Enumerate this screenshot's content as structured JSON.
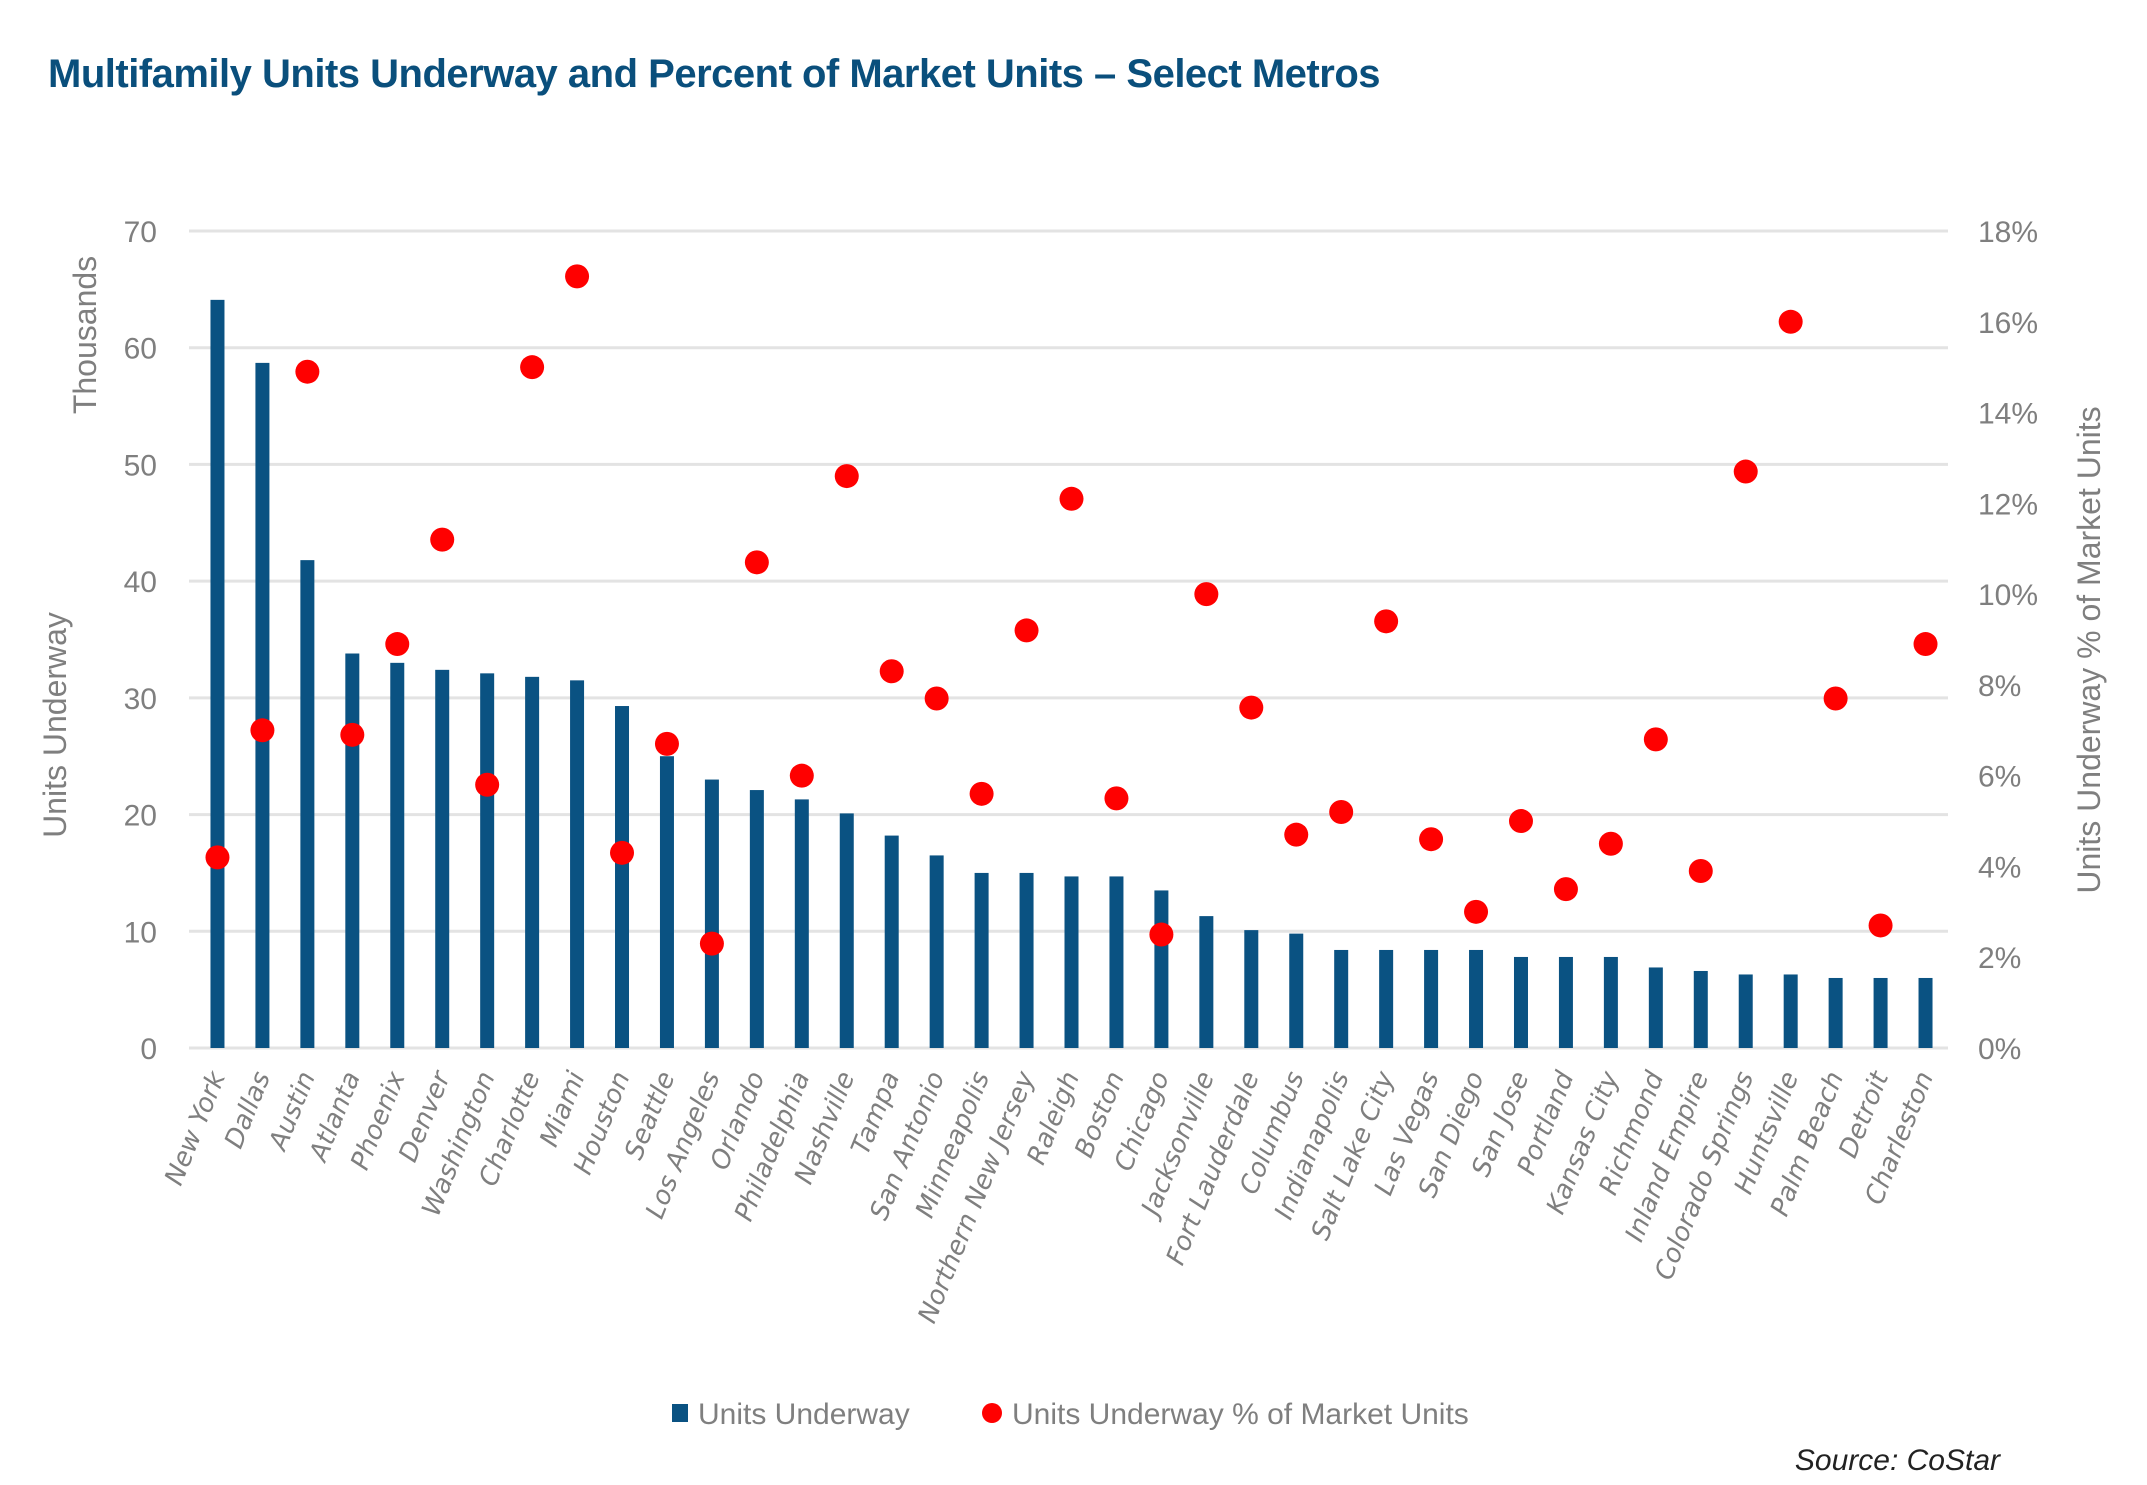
{
  "chart_data": {
    "type": "bar",
    "title": "Multifamily Units Underway and Percent of Market Units – Select Metros",
    "categories": [
      "New York",
      "Dallas",
      "Austin",
      "Atlanta",
      "Phoenix",
      "Denver",
      "Washington",
      "Charlotte",
      "Miami",
      "Houston",
      "Seattle",
      "Los Angeles",
      "Orlando",
      "Philadelphia",
      "Nashville",
      "Tampa",
      "San Antonio",
      "Minneapolis",
      "Northern New Jersey",
      "Raleigh",
      "Boston",
      "Chicago",
      "Jacksonville",
      "Fort Lauderdale",
      "Columbus",
      "Indianapolis",
      "Salt Lake City",
      "Las Vegas",
      "San Diego",
      "San Jose",
      "Portland",
      "Kansas City",
      "Richmond",
      "Inland Empire",
      "Colorado Springs",
      "Huntsville",
      "Palm Beach",
      "Detroit",
      "Charleston"
    ],
    "series": [
      {
        "name": "Units Underway",
        "type": "bar",
        "axis": "left",
        "color": "#0a5282",
        "unit": "thousands",
        "values": [
          64.1,
          58.7,
          41.8,
          33.8,
          33.0,
          32.4,
          32.1,
          31.8,
          31.5,
          29.3,
          25.0,
          23.0,
          22.1,
          21.3,
          20.1,
          18.2,
          16.5,
          15.0,
          15.0,
          14.7,
          14.7,
          13.5,
          11.3,
          10.1,
          9.8,
          8.4,
          8.4,
          8.4,
          8.4,
          7.8,
          7.8,
          7.8,
          6.9,
          6.6,
          6.3,
          6.3,
          6.0,
          6.0,
          6.0
        ]
      },
      {
        "name": "Units Underway % of Market Units",
        "type": "scatter",
        "axis": "right",
        "color": "#ff0000",
        "unit": "percent",
        "values": [
          4.2,
          7.0,
          14.9,
          6.9,
          8.9,
          11.2,
          5.8,
          15.0,
          17.0,
          4.3,
          6.7,
          2.3,
          10.7,
          6.0,
          12.6,
          8.3,
          7.7,
          5.6,
          9.2,
          12.1,
          5.5,
          2.5,
          10.0,
          7.5,
          4.7,
          5.2,
          9.4,
          4.6,
          3.0,
          5.0,
          3.5,
          4.5,
          6.8,
          3.9,
          12.7,
          16.0,
          7.7,
          2.7,
          8.9
        ]
      }
    ],
    "y_left": {
      "label": "Units Underway",
      "unit_label": "Thousands",
      "ylim": [
        0,
        70
      ],
      "ticks": [
        0,
        10,
        20,
        30,
        40,
        50,
        60,
        70
      ]
    },
    "y_right": {
      "label": "Units Underway % of Market Units",
      "ylim": [
        0,
        18
      ],
      "ticks": [
        "0%",
        "2%",
        "4%",
        "6%",
        "8%",
        "10%",
        "12%",
        "14%",
        "16%",
        "18%"
      ]
    },
    "grid": true,
    "legend": {
      "placement": "bottom",
      "entries": [
        "Units Underway",
        "Units Underway % of Market Units"
      ]
    },
    "source": "Source: CoStar"
  }
}
